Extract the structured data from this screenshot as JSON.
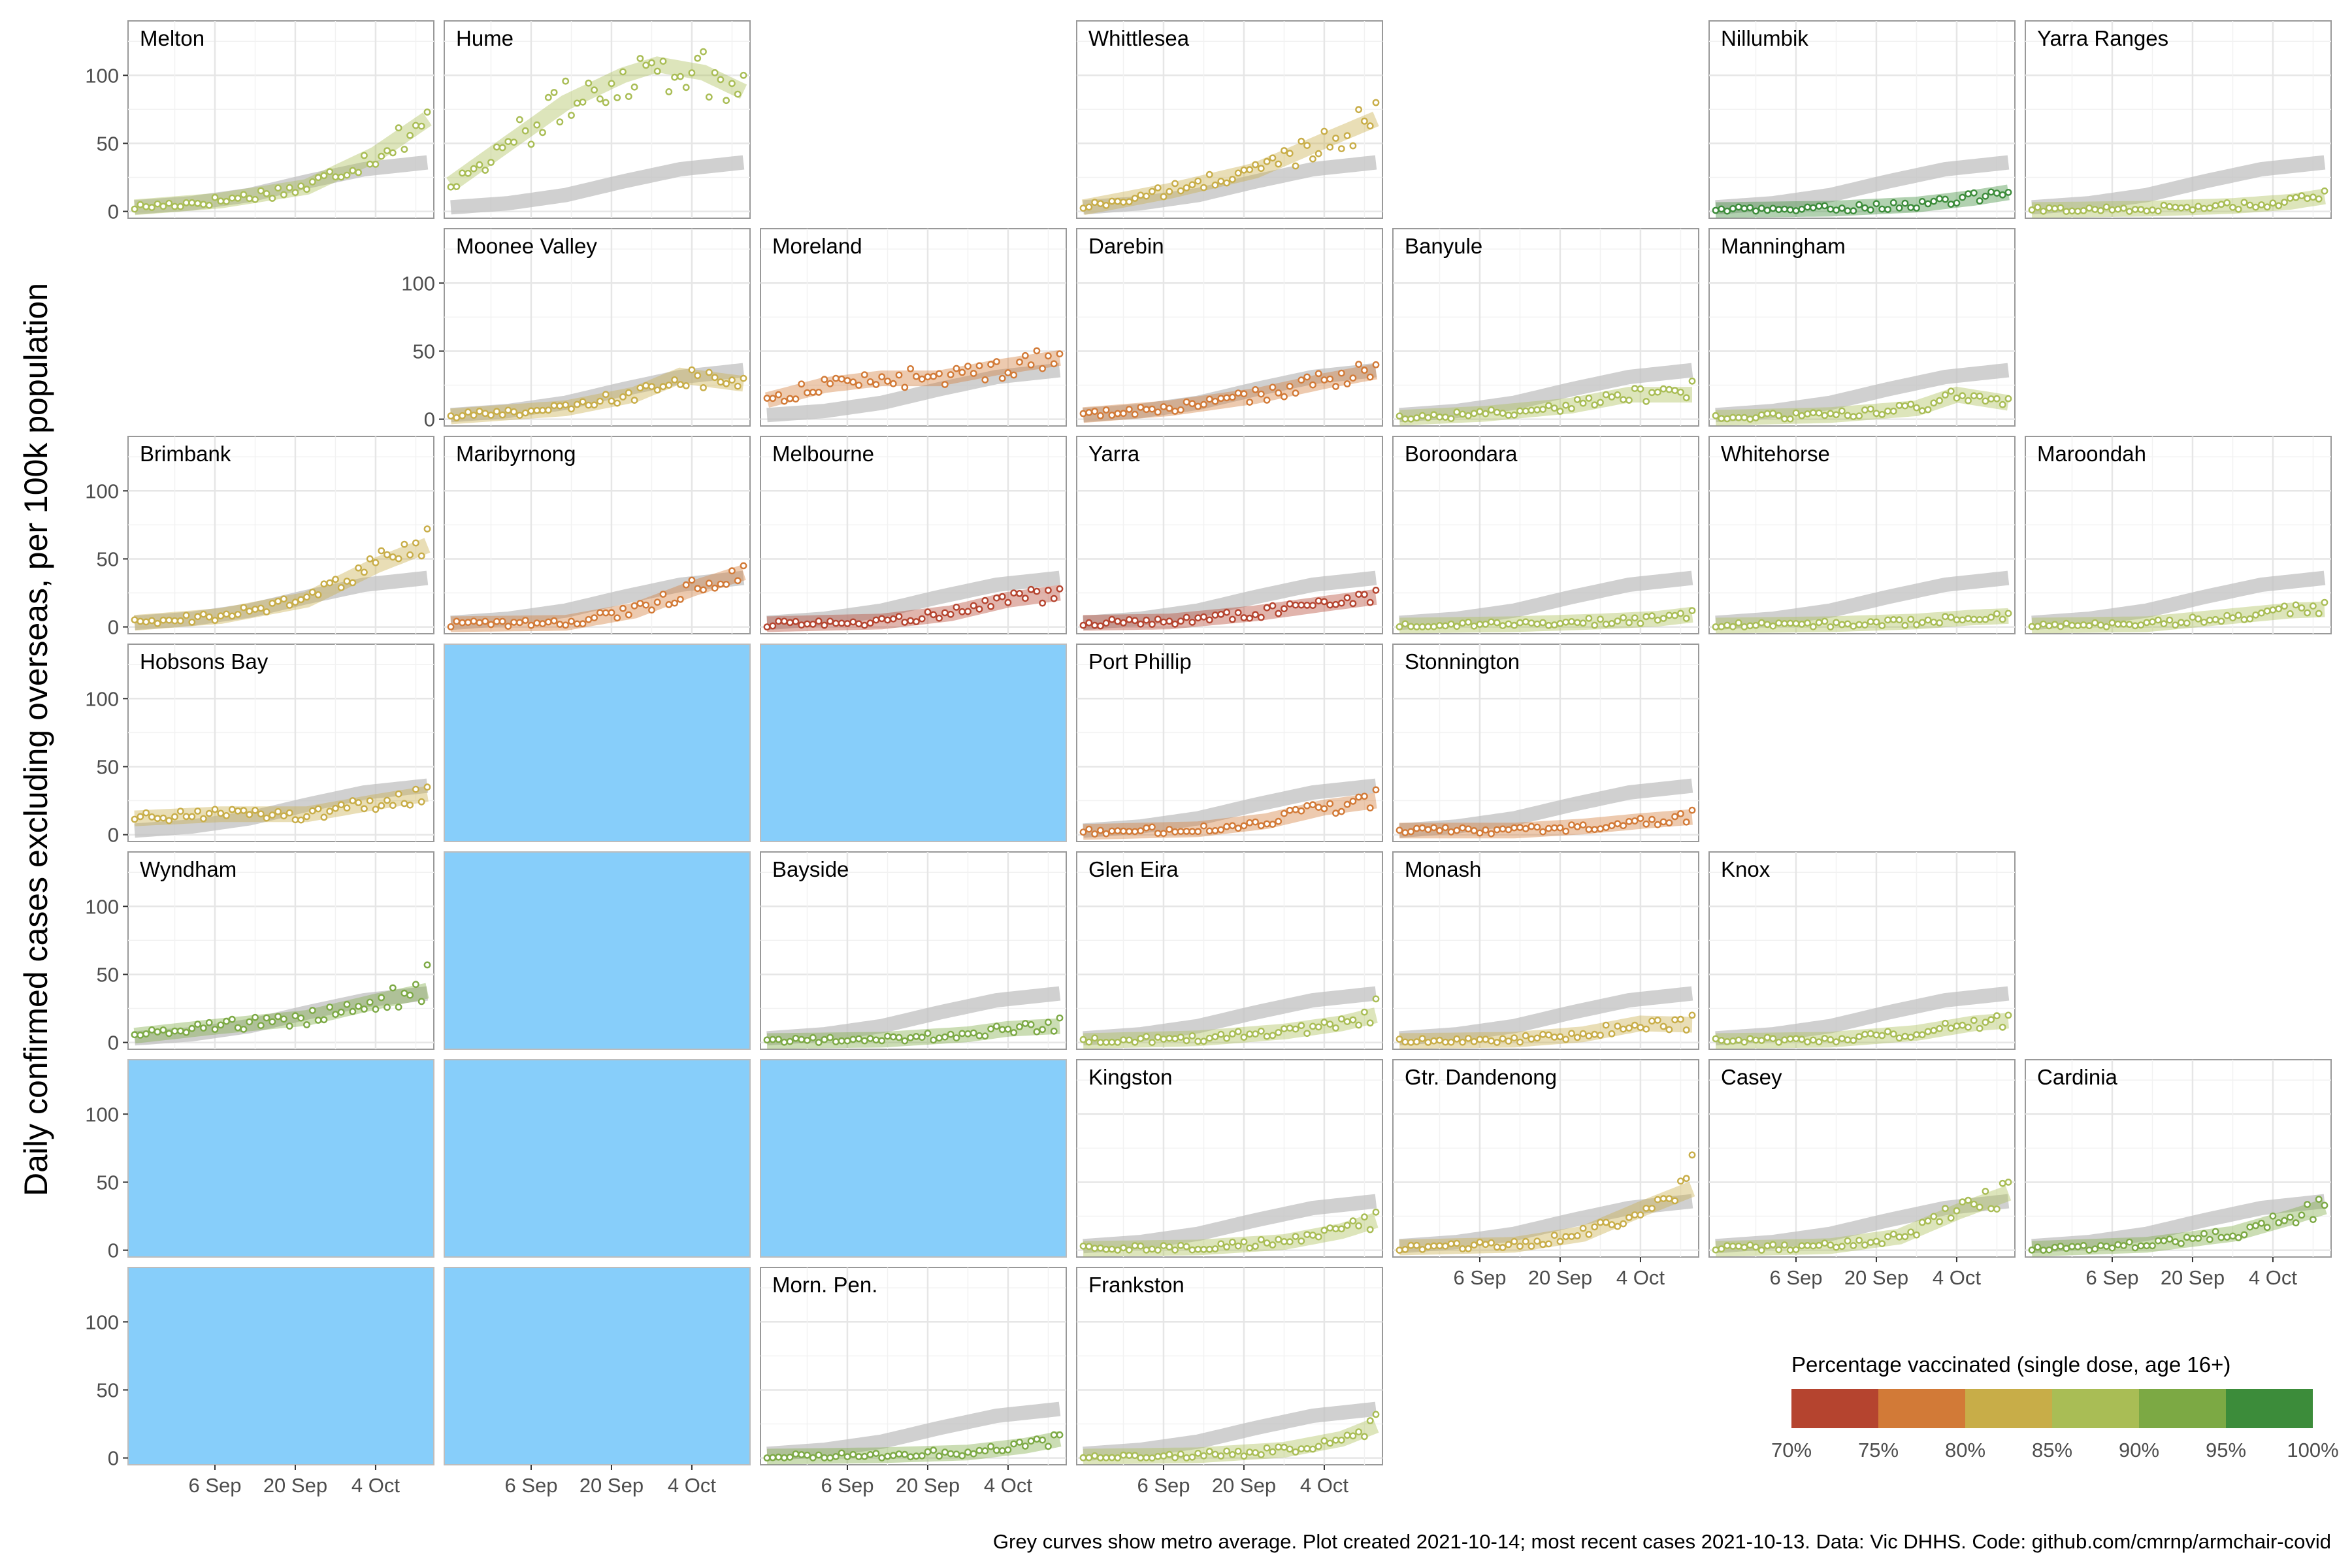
{
  "figure": {
    "ylabel": "Daily confirmed cases excluding overseas, per 100k population",
    "caption": "Grey curves show metro average. Plot created 2021-10-14; most recent cases 2021-10-13. Data: Vic DHHS. Code: github.com/cmrnp/armchair-covid",
    "legend_title": "Percentage vaccinated (single dose, age 16+)",
    "legend_labels": [
      "70%",
      "75%",
      "80%",
      "85%",
      "90%",
      "95%",
      "100%"
    ],
    "legend_colors": [
      "#b5442f",
      "#d27a37",
      "#c8ad48",
      "#a9bd55",
      "#7ca944",
      "#3c8c3a"
    ],
    "x_tick_labels": [
      "6 Sep",
      "20 Sep",
      "4 Oct"
    ],
    "y_tick_labels": [
      "0",
      "50",
      "100"
    ],
    "empty_panel_color": "#87cefa",
    "metro_average_color": "#c0c0c0"
  },
  "chart_data": {
    "type": "scatter",
    "description_fields": "Small multiples; each panel: daily points (x = day index from 2021-08-23, 0..51) and smoothed trend; grey band = metro average. Values read approximately.",
    "x_start_date": "2021-08-23",
    "x_ticks_day_index": [
      14,
      28,
      42
    ],
    "ylim": [
      -5,
      140
    ],
    "metro_average": {
      "x": [
        0,
        10,
        20,
        30,
        40,
        51
      ],
      "y": [
        3,
        6,
        12,
        22,
        31,
        36
      ]
    },
    "panels": [
      {
        "name": "Melton",
        "row": 0,
        "col": 0,
        "color_class": 3,
        "trend": [
          [
            0,
            3
          ],
          [
            15,
            8
          ],
          [
            30,
            18
          ],
          [
            42,
            42
          ],
          [
            51,
            68
          ]
        ],
        "end_value": 73
      },
      {
        "name": "Hume",
        "row": 0,
        "col": 1,
        "color_class": 3,
        "trend": [
          [
            0,
            20
          ],
          [
            10,
            50
          ],
          [
            20,
            80
          ],
          [
            30,
            100
          ],
          [
            36,
            108
          ],
          [
            44,
            102
          ],
          [
            51,
            88
          ]
        ],
        "end_value": 100
      },
      {
        "name": "Whittlesea",
        "row": 0,
        "col": 3,
        "color_class": 2,
        "trend": [
          [
            0,
            3
          ],
          [
            15,
            15
          ],
          [
            30,
            30
          ],
          [
            42,
            52
          ],
          [
            51,
            68
          ]
        ],
        "end_value": 80
      },
      {
        "name": "Nillumbik",
        "row": 0,
        "col": 5,
        "color_class": 5,
        "trend": [
          [
            0,
            1
          ],
          [
            20,
            2
          ],
          [
            35,
            5
          ],
          [
            45,
            10
          ],
          [
            51,
            14
          ]
        ],
        "end_value": 14
      },
      {
        "name": "Yarra Ranges",
        "row": 0,
        "col": 6,
        "color_class": 3,
        "trend": [
          [
            0,
            1
          ],
          [
            20,
            2
          ],
          [
            35,
            4
          ],
          [
            45,
            7
          ],
          [
            51,
            11
          ]
        ],
        "end_value": 15
      },
      {
        "name": "Moonee Valley",
        "row": 1,
        "col": 1,
        "color_class": 2,
        "trend": [
          [
            0,
            2
          ],
          [
            20,
            8
          ],
          [
            32,
            18
          ],
          [
            40,
            32
          ],
          [
            51,
            26
          ]
        ],
        "end_value": 30
      },
      {
        "name": "Moreland",
        "row": 1,
        "col": 2,
        "color_class": 1,
        "trend": [
          [
            0,
            14
          ],
          [
            10,
            25
          ],
          [
            20,
            30
          ],
          [
            30,
            30
          ],
          [
            40,
            38
          ],
          [
            51,
            45
          ]
        ],
        "end_value": 48
      },
      {
        "name": "Darebin",
        "row": 1,
        "col": 3,
        "color_class": 1,
        "trend": [
          [
            0,
            3
          ],
          [
            15,
            8
          ],
          [
            30,
            17
          ],
          [
            42,
            28
          ],
          [
            51,
            35
          ]
        ],
        "end_value": 40
      },
      {
        "name": "Banyule",
        "row": 1,
        "col": 4,
        "color_class": 3,
        "trend": [
          [
            0,
            1
          ],
          [
            15,
            4
          ],
          [
            30,
            10
          ],
          [
            40,
            18
          ],
          [
            51,
            18
          ]
        ],
        "end_value": 28
      },
      {
        "name": "Manningham",
        "row": 1,
        "col": 5,
        "color_class": 3,
        "trend": [
          [
            0,
            1
          ],
          [
            20,
            3
          ],
          [
            35,
            8
          ],
          [
            42,
            18
          ],
          [
            51,
            12
          ]
        ],
        "end_value": 15
      },
      {
        "name": "Brimbank",
        "row": 2,
        "col": 0,
        "color_class": 2,
        "trend": [
          [
            0,
            3
          ],
          [
            15,
            8
          ],
          [
            30,
            20
          ],
          [
            42,
            45
          ],
          [
            51,
            60
          ]
        ],
        "end_value": 72
      },
      {
        "name": "Maribyrnong",
        "row": 2,
        "col": 1,
        "color_class": 1,
        "trend": [
          [
            0,
            2
          ],
          [
            20,
            3
          ],
          [
            32,
            12
          ],
          [
            42,
            28
          ],
          [
            51,
            40
          ]
        ],
        "end_value": 45
      },
      {
        "name": "Melbourne",
        "row": 2,
        "col": 2,
        "color_class": 0,
        "trend": [
          [
            0,
            2
          ],
          [
            20,
            4
          ],
          [
            32,
            10
          ],
          [
            42,
            20
          ],
          [
            51,
            25
          ]
        ],
        "end_value": 28
      },
      {
        "name": "Yarra",
        "row": 2,
        "col": 3,
        "color_class": 0,
        "trend": [
          [
            0,
            3
          ],
          [
            15,
            4
          ],
          [
            30,
            10
          ],
          [
            42,
            17
          ],
          [
            51,
            22
          ]
        ],
        "end_value": 27
      },
      {
        "name": "Boroondara",
        "row": 2,
        "col": 4,
        "color_class": 3,
        "trend": [
          [
            0,
            1
          ],
          [
            20,
            2
          ],
          [
            35,
            4
          ],
          [
            45,
            6
          ],
          [
            51,
            9
          ]
        ],
        "end_value": 12
      },
      {
        "name": "Whitehorse",
        "row": 2,
        "col": 5,
        "color_class": 3,
        "trend": [
          [
            0,
            1
          ],
          [
            20,
            2
          ],
          [
            35,
            4
          ],
          [
            45,
            7
          ],
          [
            51,
            8
          ]
        ],
        "end_value": 10
      },
      {
        "name": "Maroondah",
        "row": 2,
        "col": 6,
        "color_class": 3,
        "trend": [
          [
            0,
            1
          ],
          [
            20,
            2
          ],
          [
            35,
            8
          ],
          [
            45,
            12
          ],
          [
            51,
            13
          ]
        ],
        "end_value": 18
      },
      {
        "name": "Hobsons Bay",
        "row": 3,
        "col": 0,
        "color_class": 2,
        "trend": [
          [
            0,
            12
          ],
          [
            15,
            15
          ],
          [
            30,
            15
          ],
          [
            42,
            24
          ],
          [
            51,
            30
          ]
        ],
        "end_value": 35
      },
      {
        "name": "Port Phillip",
        "row": 3,
        "col": 3,
        "color_class": 1,
        "trend": [
          [
            0,
            2
          ],
          [
            20,
            4
          ],
          [
            32,
            10
          ],
          [
            42,
            20
          ],
          [
            51,
            25
          ]
        ],
        "end_value": 33
      },
      {
        "name": "Stonnington",
        "row": 3,
        "col": 4,
        "color_class": 1,
        "trend": [
          [
            0,
            3
          ],
          [
            20,
            3
          ],
          [
            32,
            6
          ],
          [
            42,
            10
          ],
          [
            51,
            13
          ]
        ],
        "end_value": 18
      },
      {
        "name": "Wyndham",
        "row": 4,
        "col": 0,
        "color_class": 4,
        "trend": [
          [
            0,
            5
          ],
          [
            15,
            12
          ],
          [
            30,
            18
          ],
          [
            42,
            30
          ],
          [
            51,
            38
          ]
        ],
        "end_value": 57
      },
      {
        "name": "Bayside",
        "row": 4,
        "col": 2,
        "color_class": 4,
        "trend": [
          [
            0,
            1
          ],
          [
            20,
            2
          ],
          [
            35,
            6
          ],
          [
            42,
            10
          ],
          [
            51,
            12
          ]
        ],
        "end_value": 18
      },
      {
        "name": "Glen Eira",
        "row": 4,
        "col": 3,
        "color_class": 3,
        "trend": [
          [
            0,
            1
          ],
          [
            20,
            3
          ],
          [
            35,
            8
          ],
          [
            45,
            14
          ],
          [
            51,
            20
          ]
        ],
        "end_value": 32
      },
      {
        "name": "Monash",
        "row": 4,
        "col": 4,
        "color_class": 2,
        "trend": [
          [
            0,
            1
          ],
          [
            20,
            2
          ],
          [
            32,
            6
          ],
          [
            42,
            14
          ],
          [
            51,
            13
          ]
        ],
        "end_value": 20
      },
      {
        "name": "Knox",
        "row": 4,
        "col": 5,
        "color_class": 3,
        "trend": [
          [
            0,
            1
          ],
          [
            20,
            2
          ],
          [
            35,
            7
          ],
          [
            45,
            14
          ],
          [
            51,
            16
          ]
        ],
        "end_value": 20
      },
      {
        "name": "Kingston",
        "row": 5,
        "col": 3,
        "color_class": 3,
        "trend": [
          [
            0,
            1
          ],
          [
            20,
            2
          ],
          [
            35,
            6
          ],
          [
            45,
            14
          ],
          [
            51,
            22
          ]
        ],
        "end_value": 28
      },
      {
        "name": "Gtr. Dandenong",
        "row": 5,
        "col": 4,
        "color_class": 2,
        "trend": [
          [
            0,
            2
          ],
          [
            20,
            4
          ],
          [
            32,
            12
          ],
          [
            42,
            30
          ],
          [
            51,
            45
          ]
        ],
        "end_value": 70
      },
      {
        "name": "Casey",
        "row": 5,
        "col": 5,
        "color_class": 3,
        "trend": [
          [
            0,
            1
          ],
          [
            20,
            3
          ],
          [
            32,
            10
          ],
          [
            42,
            28
          ],
          [
            51,
            42
          ]
        ],
        "end_value": 50
      },
      {
        "name": "Cardinia",
        "row": 5,
        "col": 6,
        "color_class": 4,
        "trend": [
          [
            0,
            1
          ],
          [
            20,
            4
          ],
          [
            35,
            12
          ],
          [
            45,
            24
          ],
          [
            51,
            32
          ]
        ],
        "end_value": 33
      },
      {
        "name": "Morn. Pen.",
        "row": 6,
        "col": 2,
        "color_class": 4,
        "trend": [
          [
            0,
            1
          ],
          [
            20,
            2
          ],
          [
            35,
            4
          ],
          [
            45,
            9
          ],
          [
            51,
            14
          ]
        ],
        "end_value": 17
      },
      {
        "name": "Frankston",
        "row": 6,
        "col": 3,
        "color_class": 3,
        "trend": [
          [
            0,
            1
          ],
          [
            20,
            2
          ],
          [
            35,
            6
          ],
          [
            45,
            14
          ],
          [
            51,
            24
          ]
        ],
        "end_value": 32
      }
    ],
    "empty_panels": [
      [
        3,
        1
      ],
      [
        3,
        2
      ],
      [
        4,
        1
      ],
      [
        5,
        0
      ],
      [
        5,
        1
      ],
      [
        5,
        2
      ],
      [
        6,
        0
      ],
      [
        6,
        1
      ]
    ]
  }
}
